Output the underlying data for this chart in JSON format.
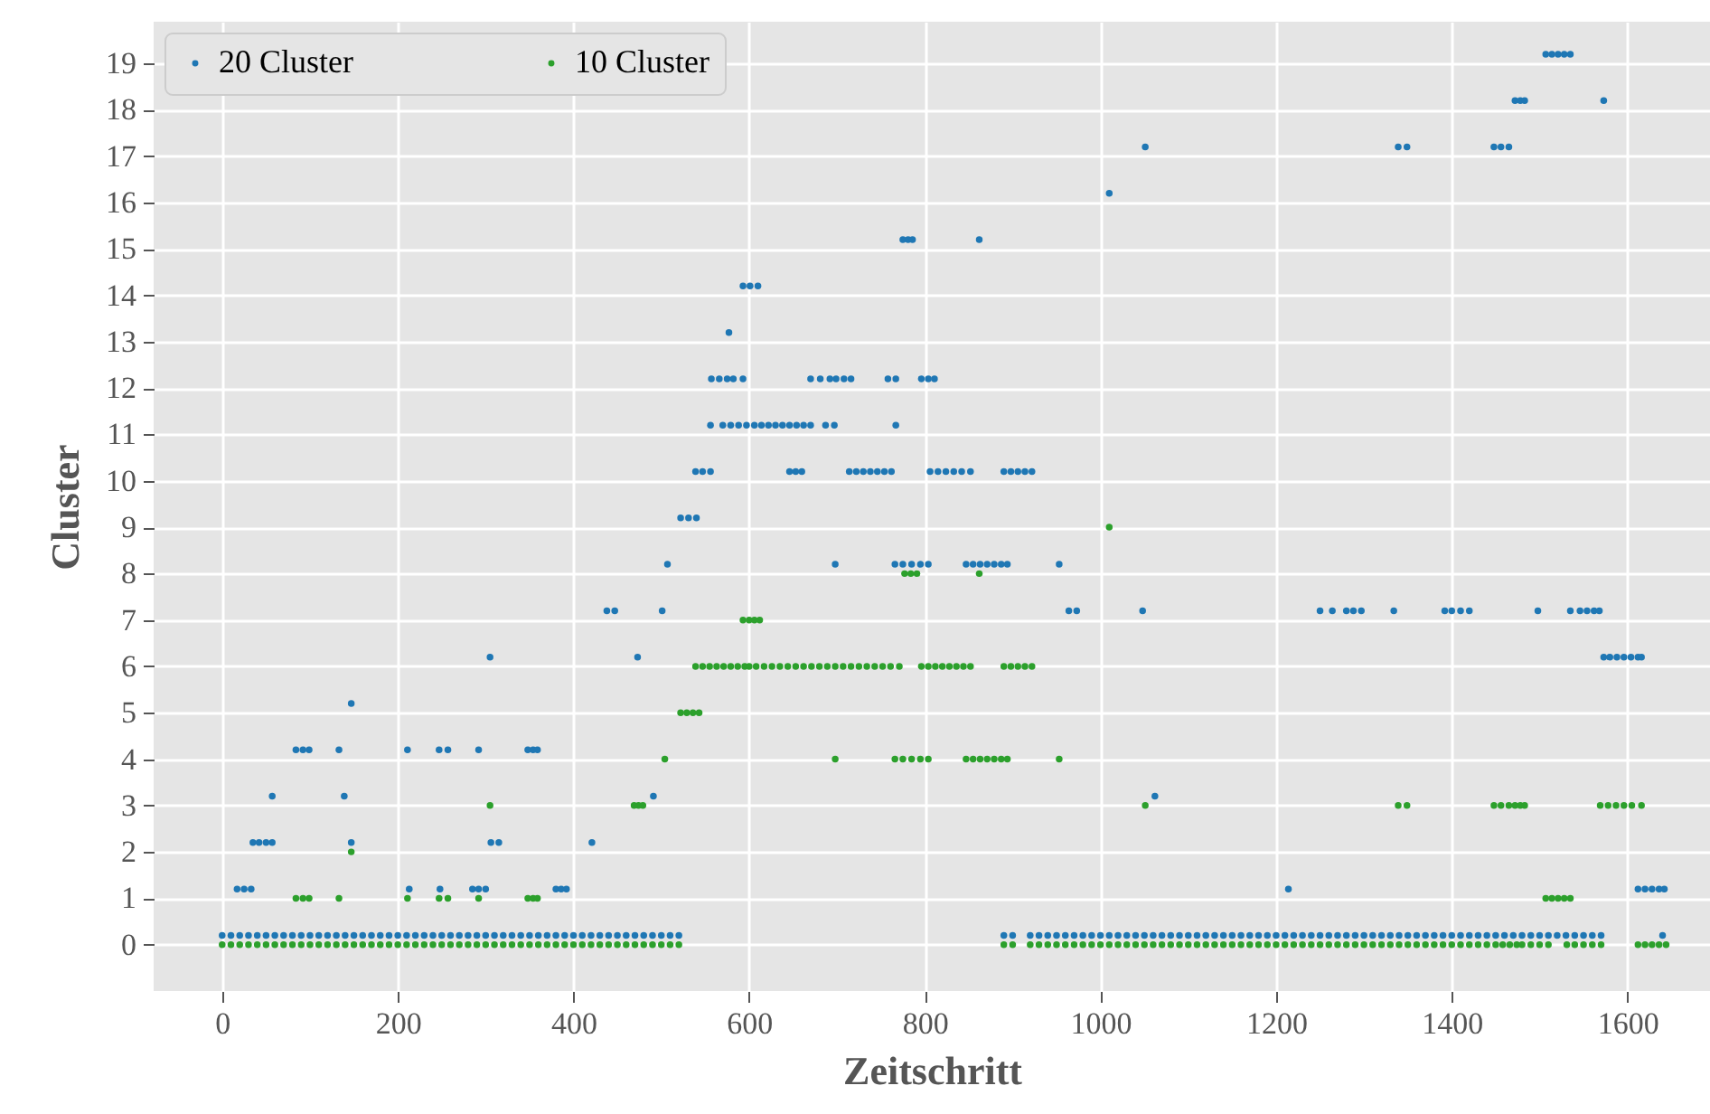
{
  "chart_data": {
    "type": "scatter",
    "xlabel": "Zeitschritt",
    "ylabel": "Cluster",
    "xlim": [
      -78,
      1694
    ],
    "ylim": [
      -1.0,
      19.9
    ],
    "xticks": [
      0,
      200,
      400,
      600,
      800,
      1000,
      1200,
      1400,
      1600
    ],
    "yticks": [
      0,
      1,
      2,
      3,
      4,
      5,
      6,
      7,
      8,
      9,
      10,
      11,
      12,
      13,
      14,
      15,
      16,
      17,
      18,
      19
    ],
    "grid": true,
    "legend": "top left",
    "marker": "circle",
    "series": [
      {
        "name": "20 Cluster",
        "color": "#1f77b4",
        "x": [
          0,
          10,
          20,
          30,
          40,
          50,
          60,
          70,
          80,
          90,
          100,
          110,
          120,
          130,
          140,
          150,
          160,
          170,
          180,
          190,
          200,
          210,
          220,
          230,
          240,
          250,
          260,
          270,
          280,
          290,
          300,
          310,
          320,
          330,
          340,
          350,
          360,
          370,
          380,
          390,
          400,
          410,
          420,
          430,
          440,
          450,
          460,
          470,
          480,
          490,
          500,
          510,
          520,
          890,
          900,
          920,
          930,
          940,
          950,
          960,
          970,
          980,
          990,
          1000,
          1010,
          1020,
          1030,
          1040,
          1050,
          1060,
          1070,
          1080,
          1090,
          1100,
          1110,
          1120,
          1130,
          1140,
          1150,
          1160,
          1170,
          1180,
          1190,
          1200,
          1210,
          1220,
          1230,
          1240,
          1250,
          1260,
          1270,
          1280,
          1290,
          1300,
          1310,
          1320,
          1330,
          1340,
          1350,
          1360,
          1370,
          1380,
          1390,
          1400,
          1410,
          1420,
          1430,
          1440,
          1450,
          1460,
          1470,
          1480,
          1490,
          1500,
          1510,
          1520,
          1530,
          1540,
          1550,
          1560,
          1570,
          1640,
          17,
          25,
          33,
          213,
          248,
          285,
          292,
          300,
          380,
          386,
          392,
          1214,
          1612,
          1620,
          1628,
          1636,
          1642,
          35,
          42,
          50,
          57,
          147,
          306,
          315,
          421,
          57,
          139,
          491,
          1062,
          84,
          92,
          99,
          133,
          211,
          247,
          257,
          292,
          348,
          354,
          359,
          147,
          305,
          473,
          1573,
          1580,
          1588,
          1596,
          1604,
          1612,
          1616,
          438,
          447,
          501,
          964,
          973,
          1048,
          1250,
          1264,
          1280,
          1288,
          1297,
          1334,
          1392,
          1400,
          1410,
          1420,
          1498,
          1535,
          1546,
          1554,
          1562,
          1568,
          507,
          698,
          766,
          775,
          785,
          795,
          804,
          847,
          855,
          863,
          871,
          879,
          887,
          894,
          953,
          522,
          531,
          540,
          539,
          547,
          556,
          646,
          653,
          660,
          714,
          722,
          730,
          738,
          746,
          754,
          762,
          806,
          815,
          824,
          833,
          842,
          852,
          890,
          898,
          906,
          914,
          922,
          556,
          570,
          579,
          588,
          597,
          606,
          614,
          622,
          630,
          638,
          646,
          654,
          662,
          670,
          687,
          697,
          767,
          557,
          566,
          575,
          582,
          593,
          670,
          681,
          692,
          699,
          708,
          716,
          758,
          767,
          796,
          804,
          811,
          577,
          593,
          601,
          610,
          775,
          781,
          786,
          862,
          1010,
          1051,
          1339,
          1349,
          1448,
          1456,
          1465,
          1472,
          1478,
          1483,
          1573,
          1507,
          1514,
          1521,
          1528,
          1535
        ],
        "values": [
          0.2,
          0.2,
          0.2,
          0.2,
          0.2,
          0.2,
          0.2,
          0.2,
          0.2,
          0.2,
          0.2,
          0.2,
          0.2,
          0.2,
          0.2,
          0.2,
          0.2,
          0.2,
          0.2,
          0.2,
          0.2,
          0.2,
          0.2,
          0.2,
          0.2,
          0.2,
          0.2,
          0.2,
          0.2,
          0.2,
          0.2,
          0.2,
          0.2,
          0.2,
          0.2,
          0.2,
          0.2,
          0.2,
          0.2,
          0.2,
          0.2,
          0.2,
          0.2,
          0.2,
          0.2,
          0.2,
          0.2,
          0.2,
          0.2,
          0.2,
          0.2,
          0.2,
          0.2,
          0.2,
          0.2,
          0.2,
          0.2,
          0.2,
          0.2,
          0.2,
          0.2,
          0.2,
          0.2,
          0.2,
          0.2,
          0.2,
          0.2,
          0.2,
          0.2,
          0.2,
          0.2,
          0.2,
          0.2,
          0.2,
          0.2,
          0.2,
          0.2,
          0.2,
          0.2,
          0.2,
          0.2,
          0.2,
          0.2,
          0.2,
          0.2,
          0.2,
          0.2,
          0.2,
          0.2,
          0.2,
          0.2,
          0.2,
          0.2,
          0.2,
          0.2,
          0.2,
          0.2,
          0.2,
          0.2,
          0.2,
          0.2,
          0.2,
          0.2,
          0.2,
          0.2,
          0.2,
          0.2,
          0.2,
          0.2,
          0.2,
          0.2,
          0.2,
          0.2,
          0.2,
          0.2,
          0.2,
          0.2,
          0.2,
          0.2,
          0.2,
          0.2,
          0.2,
          1.2,
          1.2,
          1.2,
          1.2,
          1.2,
          1.2,
          1.2,
          1.2,
          1.2,
          1.2,
          1.2,
          1.2,
          1.2,
          1.2,
          1.2,
          1.2,
          1.2,
          2.2,
          2.2,
          2.2,
          2.2,
          2.2,
          2.2,
          2.2,
          2.2,
          3.2,
          3.2,
          3.2,
          3.2,
          4.2,
          4.2,
          4.2,
          4.2,
          4.2,
          4.2,
          4.2,
          4.2,
          4.2,
          4.2,
          4.2,
          5.2,
          6.2,
          6.2,
          6.2,
          6.2,
          6.2,
          6.2,
          6.2,
          6.2,
          6.2,
          7.2,
          7.2,
          7.2,
          7.2,
          7.2,
          7.2,
          7.2,
          7.2,
          7.2,
          7.2,
          7.2,
          7.2,
          7.2,
          7.2,
          7.2,
          7.2,
          7.2,
          7.2,
          7.2,
          7.2,
          7.2,
          7.2,
          8.2,
          8.2,
          8.2,
          8.2,
          8.2,
          8.2,
          8.2,
          8.2,
          8.2,
          8.2,
          8.2,
          8.2,
          8.2,
          8.2,
          8.2,
          9.2,
          9.2,
          9.2,
          10.2,
          10.2,
          10.2,
          10.2,
          10.2,
          10.2,
          10.2,
          10.2,
          10.2,
          10.2,
          10.2,
          10.2,
          10.2,
          10.2,
          10.2,
          10.2,
          10.2,
          10.2,
          10.2,
          10.2,
          10.2,
          10.2,
          10.2,
          10.2,
          11.2,
          11.2,
          11.2,
          11.2,
          11.2,
          11.2,
          11.2,
          11.2,
          11.2,
          11.2,
          11.2,
          11.2,
          11.2,
          11.2,
          11.2,
          11.2,
          11.2,
          12.2,
          12.2,
          12.2,
          12.2,
          12.2,
          12.2,
          12.2,
          12.2,
          12.2,
          12.2,
          12.2,
          12.2,
          12.2,
          12.2,
          12.2,
          12.2,
          13.2,
          14.2,
          14.2,
          14.2,
          15.2,
          15.2,
          15.2,
          15.2,
          16.2,
          17.2,
          17.2,
          17.2,
          17.2,
          17.2,
          17.2,
          18.2,
          18.2,
          18.2,
          18.2,
          19.2,
          19.2,
          19.2,
          19.2,
          19.2
        ]
      },
      {
        "name": "10 Cluster",
        "color": "#2ca02c",
        "x": [
          0,
          10,
          20,
          30,
          40,
          50,
          60,
          70,
          80,
          90,
          100,
          110,
          120,
          130,
          140,
          150,
          160,
          170,
          180,
          190,
          200,
          210,
          220,
          230,
          240,
          250,
          260,
          270,
          280,
          290,
          300,
          310,
          320,
          330,
          340,
          350,
          360,
          370,
          380,
          390,
          400,
          410,
          420,
          430,
          440,
          450,
          460,
          470,
          480,
          490,
          500,
          510,
          520,
          890,
          900,
          920,
          930,
          940,
          950,
          960,
          970,
          980,
          990,
          1000,
          1010,
          1020,
          1030,
          1040,
          1050,
          1060,
          1070,
          1080,
          1090,
          1100,
          1110,
          1120,
          1130,
          1140,
          1150,
          1160,
          1170,
          1180,
          1190,
          1200,
          1210,
          1220,
          1230,
          1240,
          1250,
          1260,
          1270,
          1280,
          1290,
          1300,
          1310,
          1320,
          1330,
          1340,
          1350,
          1360,
          1370,
          1380,
          1390,
          1400,
          1410,
          1420,
          1430,
          1440,
          1450,
          1458,
          1466,
          1474,
          1480,
          1490,
          1500,
          1510,
          1531,
          1540,
          1550,
          1560,
          1570,
          1612,
          1620,
          1628,
          1636,
          1644,
          84,
          92,
          99,
          133,
          211,
          247,
          257,
          292,
          348,
          354,
          359,
          1507,
          1514,
          1521,
          1528,
          1535,
          147,
          305,
          469,
          474,
          479,
          1051,
          1339,
          1349,
          1448,
          1456,
          1465,
          1472,
          1478,
          1483,
          1569,
          1578,
          1587,
          1596,
          1605,
          1616,
          504,
          698,
          766,
          775,
          785,
          795,
          804,
          847,
          855,
          863,
          871,
          879,
          887,
          894,
          953,
          522,
          529,
          536,
          543,
          539,
          547,
          555,
          563,
          571,
          579,
          587,
          595,
          600,
          608,
          617,
          626,
          635,
          644,
          653,
          662,
          671,
          680,
          689,
          698,
          707,
          716,
          725,
          734,
          743,
          752,
          761,
          771,
          796,
          804,
          812,
          820,
          828,
          836,
          844,
          852,
          890,
          898,
          906,
          914,
          922,
          593,
          600,
          606,
          612,
          777,
          784,
          791,
          862,
          1010
        ],
        "values": [
          0,
          0,
          0,
          0,
          0,
          0,
          0,
          0,
          0,
          0,
          0,
          0,
          0,
          0,
          0,
          0,
          0,
          0,
          0,
          0,
          0,
          0,
          0,
          0,
          0,
          0,
          0,
          0,
          0,
          0,
          0,
          0,
          0,
          0,
          0,
          0,
          0,
          0,
          0,
          0,
          0,
          0,
          0,
          0,
          0,
          0,
          0,
          0,
          0,
          0,
          0,
          0,
          0,
          0,
          0,
          0,
          0,
          0,
          0,
          0,
          0,
          0,
          0,
          0,
          0,
          0,
          0,
          0,
          0,
          0,
          0,
          0,
          0,
          0,
          0,
          0,
          0,
          0,
          0,
          0,
          0,
          0,
          0,
          0,
          0,
          0,
          0,
          0,
          0,
          0,
          0,
          0,
          0,
          0,
          0,
          0,
          0,
          0,
          0,
          0,
          0,
          0,
          0,
          0,
          0,
          0,
          0,
          0,
          0,
          0,
          0,
          0,
          0,
          0,
          0,
          0,
          0,
          0,
          0,
          0,
          0,
          0,
          0,
          0,
          0,
          0,
          1,
          1,
          1,
          1,
          1,
          1,
          1,
          1,
          1,
          1,
          1,
          1,
          1,
          1,
          1,
          1,
          2,
          3,
          3,
          3,
          3,
          3,
          3,
          3,
          3,
          3,
          3,
          3,
          3,
          3,
          3,
          3,
          3,
          3,
          3,
          3,
          4,
          4,
          4,
          4,
          4,
          4,
          4,
          4,
          4,
          4,
          4,
          4,
          4,
          4,
          4,
          5,
          5,
          5,
          5,
          6,
          6,
          6,
          6,
          6,
          6,
          6,
          6,
          6,
          6,
          6,
          6,
          6,
          6,
          6,
          6,
          6,
          6,
          6,
          6,
          6,
          6,
          6,
          6,
          6,
          6,
          6,
          6,
          6,
          6,
          6,
          6,
          6,
          6,
          6,
          6,
          6,
          6,
          6,
          6,
          6,
          7,
          7,
          7,
          7,
          8,
          8,
          8,
          8,
          9
        ]
      }
    ]
  }
}
